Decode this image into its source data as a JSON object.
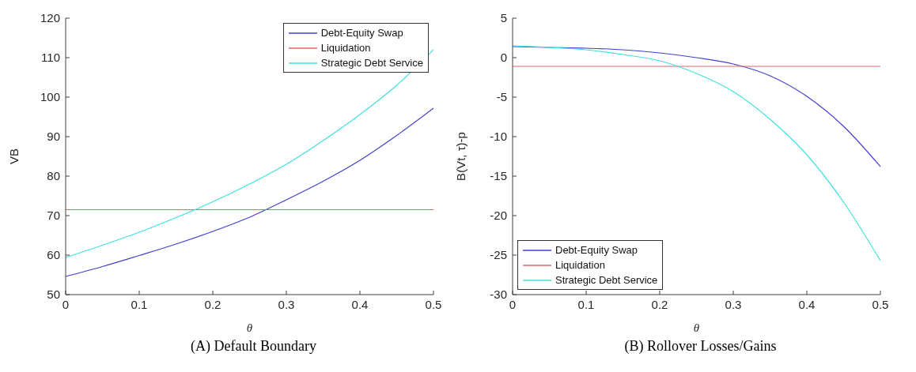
{
  "chart_data": [
    {
      "type": "line",
      "title": "(A) Default Boundary",
      "xlabel": "θ",
      "ylabel": "VB",
      "x": [
        0,
        0.05,
        0.1,
        0.15,
        0.2,
        0.25,
        0.3,
        0.35,
        0.4,
        0.45,
        0.5
      ],
      "xlim": [
        0,
        0.5
      ],
      "xticks": [
        0,
        0.1,
        0.2,
        0.3,
        0.4,
        0.5
      ],
      "ylim": [
        50,
        120
      ],
      "yticks": [
        50,
        60,
        70,
        80,
        90,
        100,
        110,
        120
      ],
      "grid": false,
      "legend": "top right",
      "marker": "none",
      "line_style": "solid",
      "series": [
        {
          "name": "Debt-Equity Swap",
          "color": "#4040d0",
          "values": [
            54.6,
            57.1,
            59.9,
            62.8,
            66,
            69.6,
            74,
            78.7,
            84,
            90.3,
            97.2
          ]
        },
        {
          "name": "Liquidation",
          "color": "#e06666",
          "values": [
            71.5,
            71.5,
            71.5,
            71.5,
            71.5,
            71.5,
            71.5,
            71.5,
            71.5,
            71.5,
            71.5
          ]
        },
        {
          "name": "Strategic Debt Service",
          "color": "#40e0e0",
          "values": [
            59.4,
            62.5,
            65.8,
            69.5,
            73.5,
            78,
            83,
            89,
            95.6,
            103,
            112
          ]
        }
      ]
    },
    {
      "type": "line",
      "title": "(B) Rollover Losses/Gains",
      "xlabel": "θ",
      "ylabel": "B(Vt, τ)-p",
      "x": [
        0,
        0.05,
        0.1,
        0.15,
        0.2,
        0.25,
        0.3,
        0.35,
        0.4,
        0.45,
        0.5
      ],
      "xlim": [
        0,
        0.5
      ],
      "xticks": [
        0,
        0.1,
        0.2,
        0.3,
        0.4,
        0.5
      ],
      "ylim": [
        -30,
        5
      ],
      "yticks": [
        -30,
        -25,
        -20,
        -15,
        -10,
        -5,
        0,
        5
      ],
      "grid": false,
      "legend": "bottom left",
      "marker": "none",
      "line_style": "solid",
      "series": [
        {
          "name": "Debt-Equity Swap",
          "color": "#4040d0",
          "values": [
            1.4,
            1.3,
            1.2,
            1.0,
            0.6,
            0,
            -0.8,
            -2.3,
            -4.9,
            -8.7,
            -13.8
          ]
        },
        {
          "name": "Liquidation",
          "color": "#e06666",
          "values": [
            -1.1,
            -1.1,
            -1.1,
            -1.1,
            -1.1,
            -1.1,
            -1.1,
            -1.1,
            -1.1,
            -1.1,
            -1.1
          ]
        },
        {
          "name": "Strategic Debt Service",
          "color": "#40e0e0",
          "values": [
            1.5,
            1.3,
            1.0,
            0.4,
            -0.4,
            -2,
            -4.3,
            -7.8,
            -12.3,
            -18.3,
            -25.7
          ]
        }
      ]
    }
  ]
}
